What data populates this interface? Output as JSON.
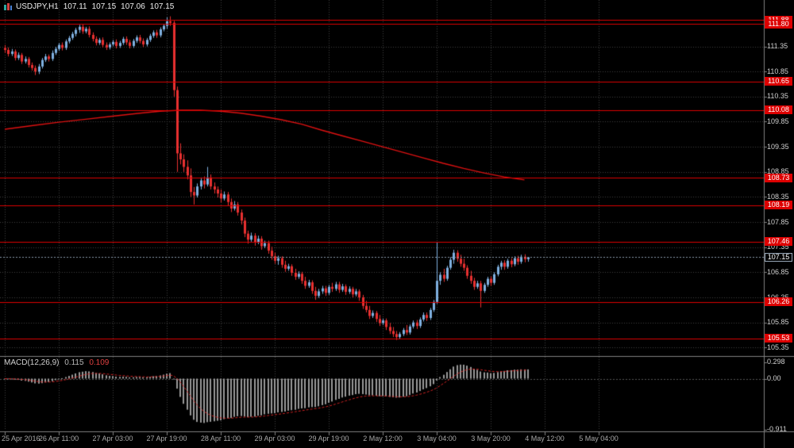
{
  "title": {
    "symbol": "USDJPY,H1",
    "open": "107.11",
    "high": "107.15",
    "low": "107.06",
    "close": "107.15"
  },
  "colors": {
    "background": "#000000",
    "grid": "#3f3f3f",
    "candle_up": "#7fb0e0",
    "candle_down": "#e83030",
    "level_line": "#dd0000",
    "ma_line": "#dd1111",
    "current_price_line": "#8899aa",
    "macd_histogram": "#9a9a9a",
    "macd_signal": "#cc2222",
    "badge_red": "#dd0000",
    "badge_current_bg": "#000000",
    "axis_text": "#d0d0d0",
    "time_text": "#a8a8a8",
    "separator": "#808080"
  },
  "chart_data": {
    "type": "candlestick",
    "symbol": "USDJPY",
    "timeframe": "H1",
    "visible_price_range": {
      "top": 112.27,
      "bottom": 105.19
    },
    "x_labels": [
      "25 Apr 2016",
      "26 Apr 11:00",
      "27 Apr 03:00",
      "27 Apr 19:00",
      "28 Apr 11:00",
      "29 Apr 03:00",
      "29 Apr 19:00",
      "2 May 12:00",
      "3 May 04:00",
      "3 May 20:00",
      "4 May 12:00",
      "5 May 04:00"
    ],
    "bars_per_x_label": 16,
    "price_axis": {
      "gridline_labels": [
        111.35,
        110.85,
        110.35,
        109.85,
        109.35,
        108.85,
        108.35,
        107.85,
        107.35,
        106.85,
        106.35,
        105.85,
        105.35
      ],
      "level_lines": [
        111.88,
        111.8,
        110.65,
        110.08,
        108.73,
        108.19,
        107.46,
        106.26,
        105.53
      ],
      "current_price": 107.15
    },
    "ma_line": {
      "description": "long-period moving average",
      "points": [
        [
          0,
          109.7
        ],
        [
          8,
          109.77
        ],
        [
          16,
          109.84
        ],
        [
          24,
          109.9
        ],
        [
          32,
          109.96
        ],
        [
          40,
          110.02
        ],
        [
          46,
          110.06
        ],
        [
          52,
          110.08
        ],
        [
          58,
          110.08
        ],
        [
          64,
          110.06
        ],
        [
          70,
          110.02
        ],
        [
          76,
          109.96
        ],
        [
          82,
          109.89
        ],
        [
          88,
          109.8
        ],
        [
          94,
          109.68
        ],
        [
          100,
          109.57
        ],
        [
          106,
          109.46
        ],
        [
          112,
          109.35
        ],
        [
          118,
          109.24
        ],
        [
          124,
          109.13
        ],
        [
          130,
          109.02
        ],
        [
          136,
          108.92
        ],
        [
          142,
          108.83
        ],
        [
          148,
          108.75
        ],
        [
          154,
          108.69
        ]
      ]
    },
    "macd": {
      "label": "MACD(12,26,9)",
      "value": "0.115",
      "signal_value": "0.109",
      "params": [
        12,
        26,
        9
      ],
      "axis_labels": [
        "0.298",
        "0.00",
        "-0.911"
      ],
      "axis_values": [
        0.298,
        0,
        -0.911
      ]
    },
    "candles": [
      [
        111.32,
        111.38,
        111.22,
        111.28
      ],
      [
        111.28,
        111.33,
        111.15,
        111.2
      ],
      [
        111.2,
        111.3,
        111.16,
        111.25
      ],
      [
        111.25,
        111.29,
        111.07,
        111.12
      ],
      [
        111.12,
        111.23,
        111.08,
        111.18
      ],
      [
        111.18,
        111.22,
        111.0,
        111.05
      ],
      [
        111.05,
        111.15,
        111.01,
        111.1
      ],
      [
        111.1,
        111.14,
        110.93,
        110.98
      ],
      [
        110.98,
        111.03,
        110.87,
        110.92
      ],
      [
        110.92,
        110.97,
        110.78,
        110.85
      ],
      [
        110.85,
        111.0,
        110.8,
        110.95
      ],
      [
        110.95,
        111.12,
        110.91,
        111.08
      ],
      [
        111.08,
        111.2,
        111.04,
        111.15
      ],
      [
        111.15,
        111.19,
        111.05,
        111.1
      ],
      [
        111.1,
        111.27,
        111.06,
        111.22
      ],
      [
        111.22,
        111.34,
        111.18,
        111.3
      ],
      [
        111.3,
        111.42,
        111.26,
        111.38
      ],
      [
        111.38,
        111.43,
        111.27,
        111.32
      ],
      [
        111.32,
        111.49,
        111.28,
        111.45
      ],
      [
        111.45,
        111.56,
        111.41,
        111.52
      ],
      [
        111.52,
        111.64,
        111.48,
        111.6
      ],
      [
        111.6,
        111.72,
        111.55,
        111.68
      ],
      [
        111.68,
        111.78,
        111.62,
        111.74
      ],
      [
        111.74,
        111.79,
        111.6,
        111.65
      ],
      [
        111.65,
        111.74,
        111.61,
        111.7
      ],
      [
        111.7,
        111.75,
        111.53,
        111.58
      ],
      [
        111.58,
        111.63,
        111.45,
        111.5
      ],
      [
        111.5,
        111.55,
        111.37,
        111.42
      ],
      [
        111.42,
        111.52,
        111.38,
        111.48
      ],
      [
        111.48,
        111.53,
        111.33,
        111.38
      ],
      [
        111.38,
        111.43,
        111.28,
        111.33
      ],
      [
        111.33,
        111.43,
        111.29,
        111.39
      ],
      [
        111.39,
        111.48,
        111.35,
        111.44
      ],
      [
        111.44,
        111.49,
        111.31,
        111.36
      ],
      [
        111.36,
        111.46,
        111.32,
        111.42
      ],
      [
        111.42,
        111.54,
        111.38,
        111.5
      ],
      [
        111.5,
        111.55,
        111.38,
        111.43
      ],
      [
        111.43,
        111.48,
        111.31,
        111.36
      ],
      [
        111.36,
        111.5,
        111.32,
        111.46
      ],
      [
        111.46,
        111.57,
        111.42,
        111.53
      ],
      [
        111.53,
        111.58,
        111.41,
        111.46
      ],
      [
        111.46,
        111.51,
        111.34,
        111.39
      ],
      [
        111.39,
        111.52,
        111.35,
        111.48
      ],
      [
        111.48,
        111.6,
        111.44,
        111.56
      ],
      [
        111.56,
        111.67,
        111.52,
        111.63
      ],
      [
        111.63,
        111.68,
        111.52,
        111.57
      ],
      [
        111.57,
        111.73,
        111.53,
        111.69
      ],
      [
        111.69,
        111.8,
        111.65,
        111.76
      ],
      [
        111.76,
        111.93,
        111.7,
        111.85
      ],
      [
        111.85,
        111.95,
        111.76,
        111.82
      ],
      [
        111.82,
        111.86,
        110.35,
        110.48
      ],
      [
        110.48,
        110.55,
        108.85,
        109.22
      ],
      [
        109.22,
        109.42,
        109.0,
        109.1
      ],
      [
        109.1,
        109.2,
        108.85,
        108.95
      ],
      [
        108.95,
        109.08,
        108.7,
        108.78
      ],
      [
        108.78,
        108.92,
        108.35,
        108.45
      ],
      [
        108.45,
        108.55,
        108.2,
        108.38
      ],
      [
        108.38,
        108.62,
        108.34,
        108.56
      ],
      [
        108.56,
        108.74,
        108.5,
        108.68
      ],
      [
        108.68,
        108.76,
        108.52,
        108.6
      ],
      [
        108.6,
        108.95,
        108.56,
        108.74
      ],
      [
        108.74,
        108.8,
        108.5,
        108.56
      ],
      [
        108.56,
        108.64,
        108.42,
        108.5
      ],
      [
        108.5,
        108.56,
        108.34,
        108.42
      ],
      [
        108.42,
        108.5,
        108.24,
        108.32
      ],
      [
        108.32,
        108.46,
        108.28,
        108.4
      ],
      [
        108.4,
        108.45,
        108.18,
        108.25
      ],
      [
        108.25,
        108.32,
        108.05,
        108.12
      ],
      [
        108.12,
        108.27,
        108.08,
        108.2
      ],
      [
        108.2,
        108.25,
        107.98,
        108.04
      ],
      [
        108.04,
        108.1,
        107.8,
        107.88
      ],
      [
        107.88,
        107.94,
        107.55,
        107.62
      ],
      [
        107.62,
        107.68,
        107.42,
        107.5
      ],
      [
        107.5,
        107.64,
        107.46,
        107.58
      ],
      [
        107.58,
        107.63,
        107.38,
        107.45
      ],
      [
        107.45,
        107.58,
        107.41,
        107.52
      ],
      [
        107.52,
        107.57,
        107.3,
        107.37
      ],
      [
        107.37,
        107.48,
        107.33,
        107.43
      ],
      [
        107.43,
        107.48,
        107.22,
        107.28
      ],
      [
        107.28,
        107.36,
        107.1,
        107.17
      ],
      [
        107.17,
        107.24,
        107.02,
        107.08
      ],
      [
        107.08,
        107.18,
        107.0,
        107.13
      ],
      [
        107.13,
        107.17,
        106.94,
        107.0
      ],
      [
        107.0,
        107.08,
        106.86,
        106.92
      ],
      [
        106.92,
        107.02,
        106.88,
        106.97
      ],
      [
        106.97,
        107.01,
        106.78,
        106.84
      ],
      [
        106.84,
        106.92,
        106.7,
        106.76
      ],
      [
        106.76,
        106.87,
        106.72,
        106.82
      ],
      [
        106.82,
        106.86,
        106.62,
        106.68
      ],
      [
        106.68,
        106.76,
        106.52,
        106.58
      ],
      [
        106.58,
        106.7,
        106.54,
        106.65
      ],
      [
        106.65,
        106.69,
        106.42,
        106.48
      ],
      [
        106.48,
        106.56,
        106.3,
        106.38
      ],
      [
        106.38,
        106.52,
        106.34,
        106.47
      ],
      [
        106.47,
        106.58,
        106.42,
        106.53
      ],
      [
        106.53,
        106.58,
        106.38,
        106.44
      ],
      [
        106.44,
        106.6,
        106.4,
        106.56
      ],
      [
        106.56,
        106.64,
        106.46,
        106.52
      ],
      [
        106.52,
        106.66,
        106.48,
        106.61
      ],
      [
        106.61,
        106.66,
        106.44,
        106.5
      ],
      [
        106.5,
        106.62,
        106.46,
        106.57
      ],
      [
        106.57,
        106.61,
        106.4,
        106.46
      ],
      [
        106.46,
        106.57,
        106.42,
        106.52
      ],
      [
        106.52,
        106.56,
        106.35,
        106.41
      ],
      [
        106.41,
        106.52,
        106.37,
        106.47
      ],
      [
        106.47,
        106.51,
        106.28,
        106.35
      ],
      [
        106.35,
        106.4,
        106.12,
        106.18
      ],
      [
        106.18,
        106.28,
        106.05,
        106.1
      ],
      [
        106.1,
        106.18,
        105.92,
        105.98
      ],
      [
        105.98,
        106.09,
        105.94,
        106.04
      ],
      [
        106.04,
        106.08,
        105.86,
        105.92
      ],
      [
        105.92,
        106.0,
        105.78,
        105.84
      ],
      [
        105.84,
        105.93,
        105.8,
        105.89
      ],
      [
        105.89,
        105.93,
        105.7,
        105.76
      ],
      [
        105.76,
        105.84,
        105.62,
        105.68
      ],
      [
        105.68,
        105.76,
        105.56,
        105.62
      ],
      [
        105.62,
        105.68,
        105.5,
        105.56
      ],
      [
        105.56,
        105.66,
        105.52,
        105.62
      ],
      [
        105.62,
        105.74,
        105.58,
        105.7
      ],
      [
        105.7,
        105.8,
        105.6,
        105.65
      ],
      [
        105.65,
        105.81,
        105.61,
        105.77
      ],
      [
        105.77,
        105.89,
        105.73,
        105.85
      ],
      [
        105.85,
        105.9,
        105.72,
        105.78
      ],
      [
        105.78,
        105.95,
        105.74,
        105.91
      ],
      [
        105.91,
        106.05,
        105.87,
        106.0
      ],
      [
        106.0,
        106.05,
        105.88,
        105.94
      ],
      [
        105.94,
        106.14,
        105.9,
        106.1
      ],
      [
        106.1,
        106.3,
        106.06,
        106.26
      ],
      [
        106.26,
        107.45,
        106.22,
        106.68
      ],
      [
        106.68,
        106.85,
        106.6,
        106.8
      ],
      [
        106.8,
        106.92,
        106.66,
        106.72
      ],
      [
        106.72,
        106.98,
        106.68,
        106.94
      ],
      [
        106.94,
        107.15,
        106.9,
        107.1
      ],
      [
        107.1,
        107.3,
        107.02,
        107.24
      ],
      [
        107.24,
        107.29,
        107.06,
        107.12
      ],
      [
        107.12,
        107.2,
        106.96,
        107.02
      ],
      [
        107.02,
        107.12,
        106.88,
        106.94
      ],
      [
        106.94,
        106.99,
        106.72,
        106.78
      ],
      [
        106.78,
        106.88,
        106.62,
        106.68
      ],
      [
        106.68,
        106.74,
        106.5,
        106.56
      ],
      [
        106.56,
        106.68,
        106.52,
        106.63
      ],
      [
        106.63,
        106.68,
        106.15,
        106.48
      ],
      [
        106.48,
        106.64,
        106.44,
        106.6
      ],
      [
        106.6,
        106.76,
        106.56,
        106.72
      ],
      [
        106.72,
        106.77,
        106.58,
        106.64
      ],
      [
        106.64,
        106.85,
        106.6,
        106.81
      ],
      [
        106.81,
        107.0,
        106.77,
        106.96
      ],
      [
        106.96,
        107.08,
        106.9,
        107.04
      ],
      [
        107.04,
        107.09,
        106.9,
        106.96
      ],
      [
        106.96,
        107.12,
        106.92,
        107.08
      ],
      [
        107.08,
        107.13,
        106.95,
        107.01
      ],
      [
        107.01,
        107.17,
        106.97,
        107.13
      ],
      [
        107.13,
        107.18,
        107.0,
        107.06
      ],
      [
        107.06,
        107.2,
        107.02,
        107.16
      ],
      [
        107.16,
        107.21,
        107.05,
        107.11
      ],
      [
        107.11,
        107.15,
        107.06,
        107.15
      ]
    ]
  }
}
